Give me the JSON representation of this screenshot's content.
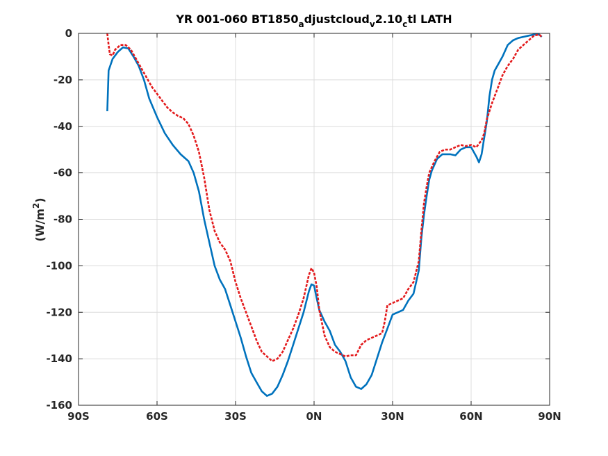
{
  "chart_data": {
    "type": "line",
    "title": {
      "main": "YR 001-060 BT1850",
      "sub1": "a",
      "mid1": "djustcloud",
      "sub2": "v",
      "mid2": "2.10",
      "sub3": "c",
      "end": "tl LATH"
    },
    "ylabel": {
      "main": "(W/m",
      "sup": "2",
      "end": ")"
    },
    "xlim": [
      -90,
      90
    ],
    "ylim": [
      -160,
      0
    ],
    "grid": true,
    "x_ticks": [
      {
        "value": -90,
        "label": "90S"
      },
      {
        "value": -60,
        "label": "60S"
      },
      {
        "value": -30,
        "label": "30S"
      },
      {
        "value": 0,
        "label": "0N"
      },
      {
        "value": 30,
        "label": "30N"
      },
      {
        "value": 60,
        "label": "60N"
      },
      {
        "value": 90,
        "label": "90N"
      }
    ],
    "y_ticks": [
      {
        "value": 0,
        "label": "0"
      },
      {
        "value": -20,
        "label": "-20"
      },
      {
        "value": -40,
        "label": "-40"
      },
      {
        "value": -60,
        "label": "-60"
      },
      {
        "value": -80,
        "label": "-80"
      },
      {
        "value": -100,
        "label": "-100"
      },
      {
        "value": -120,
        "label": "-120"
      },
      {
        "value": -140,
        "label": "-140"
      },
      {
        "value": -160,
        "label": "-160"
      }
    ],
    "series": [
      {
        "color": "#0072BD",
        "dash": "solid",
        "points": [
          [
            -79,
            -33.5
          ],
          [
            -78.5,
            -16
          ],
          [
            -77,
            -11
          ],
          [
            -75,
            -8
          ],
          [
            -73,
            -6
          ],
          [
            -71,
            -6.5
          ],
          [
            -69,
            -10
          ],
          [
            -67,
            -14
          ],
          [
            -65,
            -20
          ],
          [
            -63,
            -28
          ],
          [
            -60,
            -36
          ],
          [
            -57,
            -43
          ],
          [
            -54,
            -48
          ],
          [
            -51,
            -52
          ],
          [
            -48,
            -55
          ],
          [
            -46,
            -60
          ],
          [
            -44,
            -68
          ],
          [
            -42,
            -80
          ],
          [
            -40,
            -90
          ],
          [
            -38,
            -100
          ],
          [
            -36,
            -106
          ],
          [
            -34,
            -110
          ],
          [
            -32,
            -117
          ],
          [
            -30,
            -124
          ],
          [
            -28,
            -131
          ],
          [
            -26,
            -139
          ],
          [
            -24,
            -146
          ],
          [
            -22,
            -150
          ],
          [
            -20,
            -154
          ],
          [
            -18,
            -156
          ],
          [
            -16,
            -155
          ],
          [
            -14,
            -152
          ],
          [
            -12,
            -147
          ],
          [
            -10,
            -141
          ],
          [
            -8,
            -134
          ],
          [
            -6,
            -127
          ],
          [
            -4,
            -120
          ],
          [
            -2,
            -111
          ],
          [
            -1,
            -108
          ],
          [
            0,
            -108.5
          ],
          [
            1,
            -114
          ],
          [
            2,
            -119
          ],
          [
            4,
            -124
          ],
          [
            6,
            -128
          ],
          [
            8,
            -134
          ],
          [
            10,
            -137
          ],
          [
            12,
            -141
          ],
          [
            14,
            -148
          ],
          [
            16,
            -152
          ],
          [
            18,
            -153
          ],
          [
            20,
            -151
          ],
          [
            22,
            -147
          ],
          [
            24,
            -140
          ],
          [
            26,
            -133
          ],
          [
            28,
            -127
          ],
          [
            30,
            -121
          ],
          [
            32,
            -120
          ],
          [
            34,
            -119
          ],
          [
            36,
            -115
          ],
          [
            38,
            -112
          ],
          [
            40,
            -102
          ],
          [
            41,
            -88
          ],
          [
            42,
            -78
          ],
          [
            43,
            -70
          ],
          [
            44,
            -63
          ],
          [
            45,
            -59
          ],
          [
            47,
            -54
          ],
          [
            49,
            -52
          ],
          [
            52,
            -52
          ],
          [
            54,
            -52.5
          ],
          [
            56,
            -50
          ],
          [
            58,
            -49
          ],
          [
            60,
            -49
          ],
          [
            62,
            -53
          ],
          [
            63,
            -55.5
          ],
          [
            64,
            -52
          ],
          [
            65,
            -45
          ],
          [
            66,
            -38
          ],
          [
            67,
            -27
          ],
          [
            68,
            -20
          ],
          [
            69,
            -16
          ],
          [
            70,
            -14
          ],
          [
            71,
            -12
          ],
          [
            72,
            -10
          ],
          [
            74,
            -5
          ],
          [
            76,
            -3
          ],
          [
            78,
            -2
          ],
          [
            80,
            -1.5
          ],
          [
            82,
            -1
          ],
          [
            84,
            -0.5
          ],
          [
            86,
            -0.5
          ],
          [
            87,
            -1.5
          ]
        ]
      },
      {
        "color": "#E31A1C",
        "dash": "dashed",
        "points": [
          [
            -79,
            0
          ],
          [
            -78.5,
            -5
          ],
          [
            -78,
            -9
          ],
          [
            -77,
            -9.5
          ],
          [
            -76,
            -7
          ],
          [
            -74,
            -5
          ],
          [
            -72,
            -5
          ],
          [
            -70,
            -7
          ],
          [
            -68,
            -11
          ],
          [
            -66,
            -15
          ],
          [
            -64,
            -19
          ],
          [
            -62,
            -23
          ],
          [
            -60,
            -26
          ],
          [
            -58,
            -29
          ],
          [
            -56,
            -32
          ],
          [
            -54,
            -34
          ],
          [
            -52,
            -35.5
          ],
          [
            -50,
            -36.5
          ],
          [
            -48,
            -39
          ],
          [
            -46,
            -44
          ],
          [
            -44,
            -51
          ],
          [
            -42,
            -62
          ],
          [
            -40,
            -76
          ],
          [
            -38,
            -85
          ],
          [
            -36,
            -90
          ],
          [
            -34,
            -93
          ],
          [
            -32,
            -98
          ],
          [
            -30,
            -107
          ],
          [
            -28,
            -114
          ],
          [
            -26,
            -120
          ],
          [
            -24,
            -126
          ],
          [
            -22,
            -132
          ],
          [
            -20,
            -137
          ],
          [
            -18,
            -139
          ],
          [
            -16,
            -141
          ],
          [
            -14,
            -140
          ],
          [
            -12,
            -137
          ],
          [
            -10,
            -132
          ],
          [
            -8,
            -127
          ],
          [
            -6,
            -121
          ],
          [
            -4,
            -114
          ],
          [
            -2,
            -104
          ],
          [
            -1,
            -101
          ],
          [
            0,
            -103
          ],
          [
            1,
            -109
          ],
          [
            2,
            -119
          ],
          [
            4,
            -130
          ],
          [
            6,
            -135
          ],
          [
            8,
            -137
          ],
          [
            10,
            -138
          ],
          [
            12,
            -139
          ],
          [
            14,
            -138.5
          ],
          [
            16,
            -138.5
          ],
          [
            18,
            -134
          ],
          [
            20,
            -132
          ],
          [
            22,
            -131
          ],
          [
            24,
            -130
          ],
          [
            26,
            -129
          ],
          [
            27,
            -124
          ],
          [
            28,
            -117
          ],
          [
            30,
            -116
          ],
          [
            32,
            -115
          ],
          [
            34,
            -114
          ],
          [
            36,
            -110
          ],
          [
            38,
            -107
          ],
          [
            40,
            -98
          ],
          [
            41,
            -85
          ],
          [
            42,
            -73
          ],
          [
            43,
            -66
          ],
          [
            44,
            -60
          ],
          [
            46,
            -55
          ],
          [
            48,
            -51
          ],
          [
            50,
            -50
          ],
          [
            52,
            -50
          ],
          [
            54,
            -49
          ],
          [
            56,
            -48
          ],
          [
            58,
            -48.5
          ],
          [
            60,
            -48
          ],
          [
            62,
            -49
          ],
          [
            64,
            -46
          ],
          [
            65,
            -43
          ],
          [
            66,
            -37
          ],
          [
            68,
            -30
          ],
          [
            70,
            -24
          ],
          [
            72,
            -18
          ],
          [
            74,
            -14
          ],
          [
            76,
            -11
          ],
          [
            78,
            -7
          ],
          [
            80,
            -5
          ],
          [
            82,
            -3
          ],
          [
            84,
            -1
          ],
          [
            86,
            -0.5
          ],
          [
            87,
            -1.5
          ]
        ]
      }
    ]
  }
}
